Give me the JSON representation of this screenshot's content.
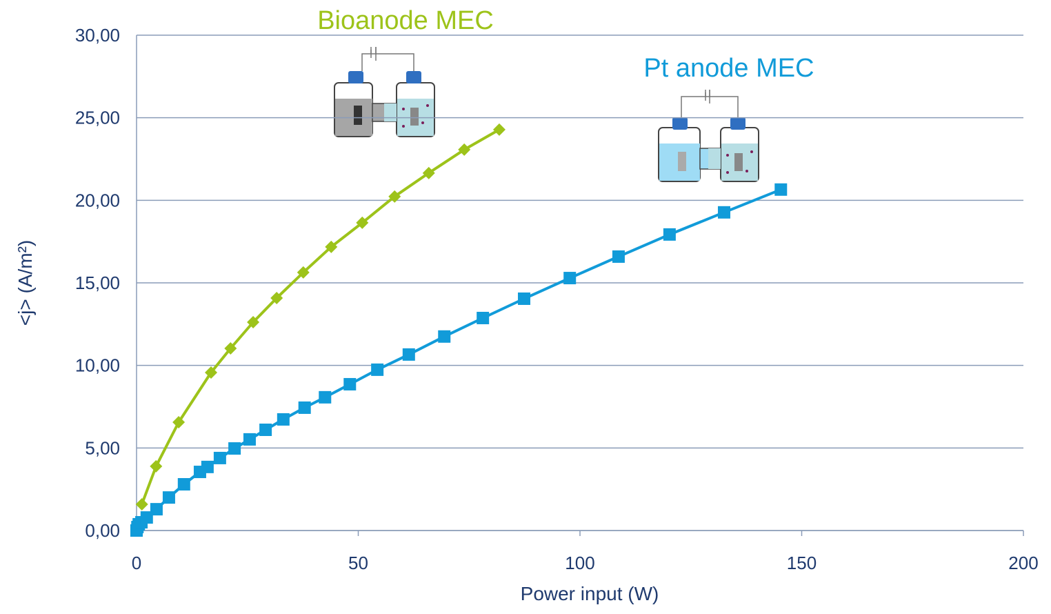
{
  "chart_data": {
    "type": "line",
    "xlabel": "Power input (W)",
    "ylabel": "<j> (A/m²)",
    "xlim": [
      0,
      200
    ],
    "xticks": [
      0,
      50,
      100,
      150,
      200
    ],
    "ylim": [
      0,
      30
    ],
    "yticks": [
      {
        "value": 0,
        "label": "0,00"
      },
      {
        "value": 5,
        "label": "5,00"
      },
      {
        "value": 10,
        "label": "10,00"
      },
      {
        "value": 15,
        "label": "15,00"
      },
      {
        "value": 20,
        "label": "20,00"
      },
      {
        "value": 25,
        "label": "25,00"
      },
      {
        "value": 30,
        "label": "30,00"
      }
    ],
    "grid": true,
    "series": [
      {
        "name": "Bioanode MEC",
        "color": "#9dc31a",
        "marker": "diamond",
        "x": [
          1.2,
          4.4,
          9.5,
          16.8,
          21.2,
          26.3,
          31.6,
          37.6,
          43.9,
          50.9,
          58.2,
          65.9,
          73.9,
          81.8
        ],
        "values": [
          1.59,
          3.89,
          6.56,
          9.57,
          11.03,
          12.62,
          14.08,
          15.63,
          17.18,
          18.64,
          20.23,
          21.65,
          23.07,
          24.28
        ]
      },
      {
        "name": "Pt anode MEC",
        "color": "#119bd9",
        "marker": "square",
        "x": [
          0,
          0.2,
          0.5,
          1.1,
          2.3,
          4.5,
          7.3,
          10.7,
          14.3,
          16.0,
          18.8,
          22.1,
          25.5,
          29.1,
          33.1,
          37.9,
          42.5,
          48.1,
          54.3,
          61.4,
          69.4,
          78.1,
          87.4,
          97.7,
          108.7,
          120.2,
          132.5,
          145.3
        ],
        "values": [
          0,
          0.21,
          0.38,
          0.5,
          0.79,
          1.29,
          2.0,
          2.8,
          3.55,
          3.85,
          4.39,
          4.97,
          5.52,
          6.1,
          6.73,
          7.44,
          8.07,
          8.86,
          9.74,
          10.66,
          11.75,
          12.87,
          14.04,
          15.29,
          16.59,
          17.93,
          19.27,
          20.65
        ]
      }
    ]
  }
}
